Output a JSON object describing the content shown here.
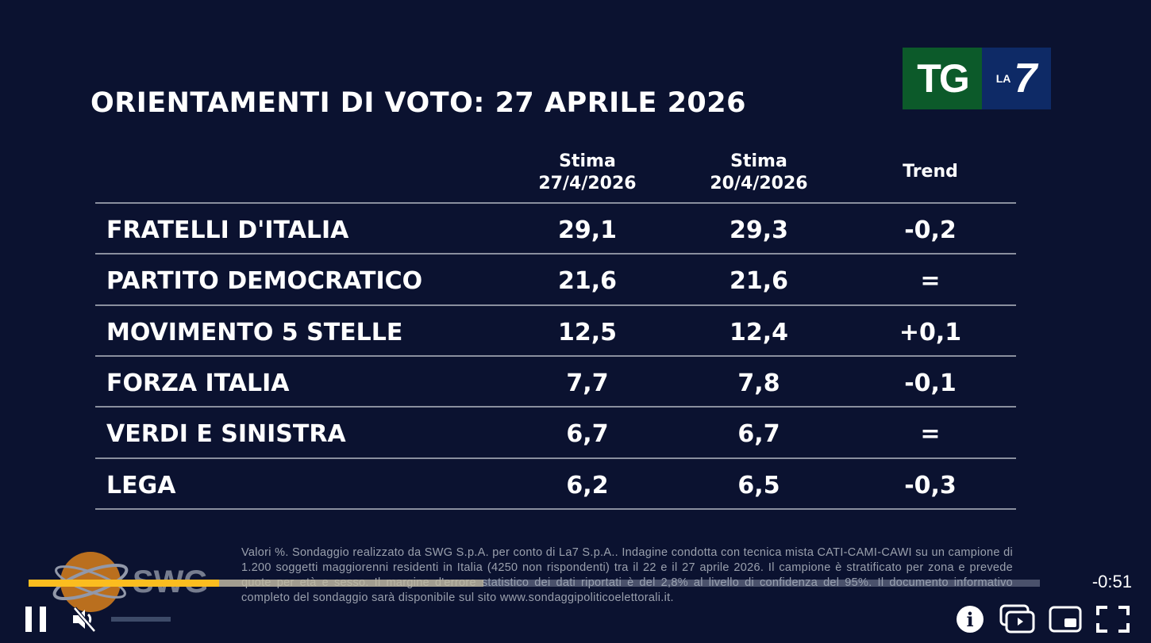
{
  "title": "ORIENTAMENTI DI VOTO: 27 APRILE 2026",
  "logo": {
    "tg": "TG",
    "la": "LA",
    "seven": "7"
  },
  "columns": [
    {
      "line1": "Stima",
      "line2": "27/4/2026"
    },
    {
      "line1": "Stima",
      "line2": "20/4/2026"
    },
    {
      "line1": "Trend",
      "line2": ""
    }
  ],
  "rows": [
    {
      "party": "FRATELLI D'ITALIA",
      "current": "29,1",
      "previous": "29,3",
      "trend": "-0,2"
    },
    {
      "party": "PARTITO DEMOCRATICO",
      "current": "21,6",
      "previous": "21,6",
      "trend": "="
    },
    {
      "party": "MOVIMENTO 5 STELLE",
      "current": "12,5",
      "previous": "12,4",
      "trend": "+0,1"
    },
    {
      "party": "FORZA ITALIA",
      "current": "7,7",
      "previous": "7,8",
      "trend": "-0,1"
    },
    {
      "party": "VERDI E SINISTRA",
      "current": "6,7",
      "previous": "6,7",
      "trend": "="
    },
    {
      "party": "LEGA",
      "current": "6,2",
      "previous": "6,5",
      "trend": "-0,3"
    }
  ],
  "footnote": "Valori %. Sondaggio realizzato da SWG S.p.A. per conto di La7 S.p.A.. Indagine condotta con tecnica mista CATI-CAMI-CAWI su un campione di 1.200 soggetti maggiorenni residenti in Italia (4250 non rispondenti) tra il 22 e il 27 aprile 2026. Il campione è stratificato per zona e prevede quote per età e sesso. Il margine d'errore statistico dei dati riportati è del 2,8% al livello di confidenza del 95%. Il documento informativo completo del sondaggio sarà disponibile sul sito www.sondaggipoliticoelettorali.it.",
  "swg_logo": "SWG",
  "player": {
    "time_remaining": "-0:51",
    "progress_percent": 18.8,
    "buffered_percent": 45,
    "muted": true,
    "playing": true,
    "accent": "#fbbd1f"
  }
}
